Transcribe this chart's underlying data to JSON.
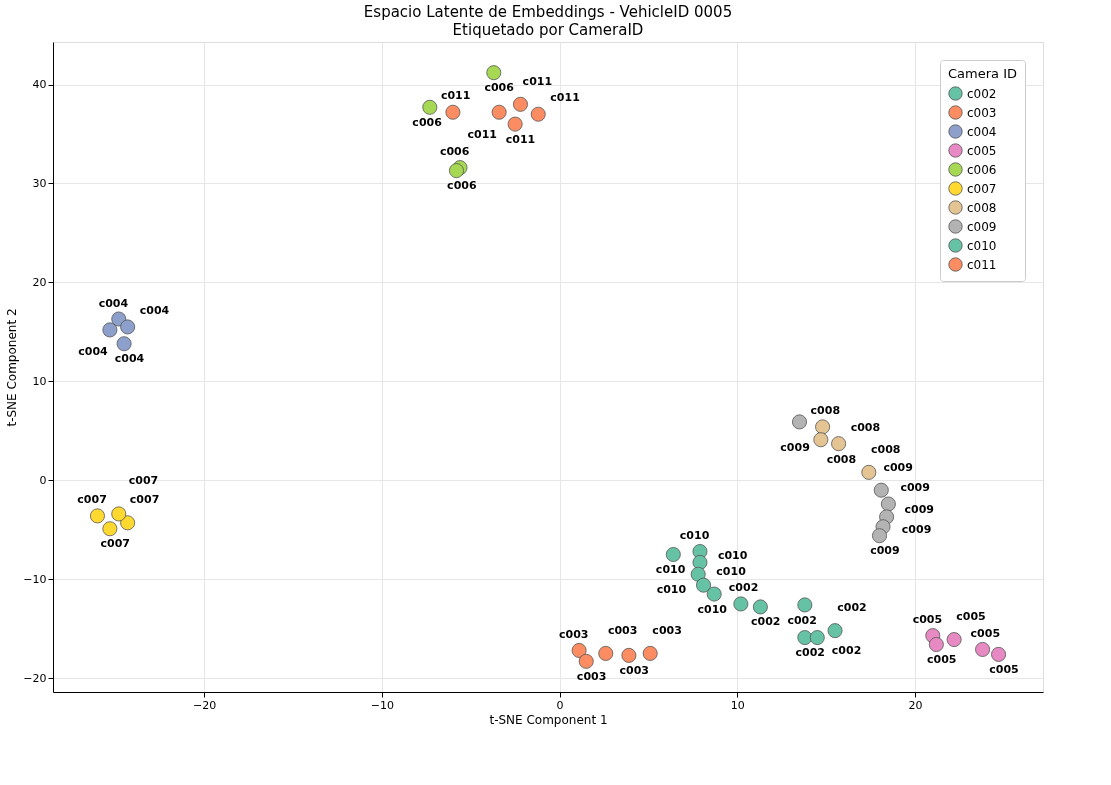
{
  "chart_data": {
    "type": "scatter",
    "title": "Espacio Latente de Embeddings - VehicleID 0005",
    "subtitle": "Etiquetado por CameraID",
    "xlabel": "t-SNE Component 1",
    "ylabel": "t-SNE Component 2",
    "legend_title": "Camera ID",
    "legend": "top right",
    "grid": true,
    "marker": "circle",
    "xlim": [
      -28.5,
      27.2
    ],
    "ylim": [
      -21.4,
      44.3
    ],
    "xticks": [
      -20,
      -10,
      0,
      10,
      20
    ],
    "yticks": [
      -20,
      -10,
      0,
      10,
      20,
      30,
      40
    ],
    "series": [
      {
        "name": "c002",
        "color": "#66c2a5",
        "x": [
          10.2,
          11.3,
          13.8,
          13.8,
          14.5,
          15.5
        ],
        "values": [
          -12.5,
          -12.8,
          -12.6,
          -15.9,
          -15.9,
          -15.2
        ]
      },
      {
        "name": "c003",
        "color": "#fc8d62",
        "x": [
          1.1,
          1.5,
          2.6,
          3.9,
          5.1
        ],
        "values": [
          -17.2,
          -18.3,
          -17.5,
          -17.7,
          -17.5
        ]
      },
      {
        "name": "c004",
        "color": "#8da0cb",
        "x": [
          -25.3,
          -24.8,
          -24.5,
          -24.3
        ],
        "values": [
          15.2,
          16.3,
          13.8,
          15.5
        ]
      },
      {
        "name": "c005",
        "color": "#e78ac3",
        "x": [
          21.0,
          21.2,
          22.2,
          23.8,
          24.7
        ],
        "values": [
          -15.7,
          -16.6,
          -16.1,
          -17.1,
          -17.6
        ]
      },
      {
        "name": "c006",
        "color": "#a6d854",
        "x": [
          -7.3,
          -3.7,
          -5.6,
          -5.8
        ],
        "values": [
          37.7,
          41.2,
          31.6,
          31.3
        ]
      },
      {
        "name": "c007",
        "color": "#ffd92f",
        "x": [
          -26.0,
          -25.3,
          -24.3,
          -24.8
        ],
        "values": [
          -3.6,
          -4.9,
          -4.3,
          -3.4
        ]
      },
      {
        "name": "c008",
        "color": "#e5c494",
        "x": [
          14.8,
          14.7,
          15.7,
          17.4
        ],
        "values": [
          5.4,
          4.1,
          3.7,
          0.8
        ]
      },
      {
        "name": "c009",
        "color": "#b3b3b3",
        "x": [
          13.5,
          18.1,
          18.5,
          18.4,
          18.2,
          18.0
        ],
        "values": [
          5.9,
          -1.0,
          -2.4,
          -3.7,
          -4.7,
          -5.6
        ]
      },
      {
        "name": "c010",
        "color": "#66c2a5",
        "x": [
          6.4,
          7.9,
          7.9,
          7.8,
          8.1,
          8.7
        ],
        "values": [
          -7.5,
          -7.2,
          -8.3,
          -9.5,
          -10.6,
          -11.5
        ]
      },
      {
        "name": "c011",
        "color": "#fc8d62",
        "x": [
          -6.0,
          -3.4,
          -2.5,
          -2.2,
          -1.2
        ],
        "values": [
          37.2,
          37.2,
          36.0,
          38.0,
          37.0
        ]
      }
    ],
    "annotations": [
      {
        "text": "c002",
        "x": 10.2,
        "y": -12.5
      },
      {
        "text": "c002",
        "x": 11.3,
        "y": -12.8
      },
      {
        "text": "c002",
        "x": 13.8,
        "y": -12.6
      },
      {
        "text": "c002",
        "x": 13.8,
        "y": -15.9
      },
      {
        "text": "c002",
        "x": 14.5,
        "y": -15.9
      },
      {
        "text": "c002",
        "x": 15.5,
        "y": -15.2
      },
      {
        "text": "c003",
        "x": 1.1,
        "y": -17.2
      },
      {
        "text": "c003",
        "x": 1.5,
        "y": -18.3
      },
      {
        "text": "c003",
        "x": 2.6,
        "y": -17.5
      },
      {
        "text": "c003",
        "x": 3.9,
        "y": -17.7
      },
      {
        "text": "c003",
        "x": 5.1,
        "y": -17.5
      },
      {
        "text": "c004",
        "x": -25.3,
        "y": 15.2
      },
      {
        "text": "c004",
        "x": -24.8,
        "y": 16.3
      },
      {
        "text": "c004",
        "x": -24.5,
        "y": 13.8
      },
      {
        "text": "c004",
        "x": -24.3,
        "y": 15.5
      },
      {
        "text": "c005",
        "x": 21.0,
        "y": -15.7
      },
      {
        "text": "c005",
        "x": 21.2,
        "y": -16.6
      },
      {
        "text": "c005",
        "x": 22.2,
        "y": -16.1
      },
      {
        "text": "c005",
        "x": 23.8,
        "y": -17.1
      },
      {
        "text": "c005",
        "x": 24.7,
        "y": -17.6
      },
      {
        "text": "c006",
        "x": -7.3,
        "y": 37.7
      },
      {
        "text": "c006",
        "x": -3.7,
        "y": 41.2
      },
      {
        "text": "c006",
        "x": -5.6,
        "y": 31.6
      },
      {
        "text": "c006",
        "x": -5.8,
        "y": 31.3
      },
      {
        "text": "c007",
        "x": -26.0,
        "y": -3.6
      },
      {
        "text": "c007",
        "x": -25.3,
        "y": -4.9
      },
      {
        "text": "c007",
        "x": -24.3,
        "y": -4.3
      },
      {
        "text": "c007",
        "x": -24.8,
        "y": -3.4
      },
      {
        "text": "c008",
        "x": 14.8,
        "y": 5.4
      },
      {
        "text": "c008",
        "x": 14.7,
        "y": 4.1
      },
      {
        "text": "c008",
        "x": 15.7,
        "y": 3.7
      },
      {
        "text": "c008",
        "x": 17.4,
        "y": 0.8
      },
      {
        "text": "c009",
        "x": 13.5,
        "y": 5.9
      },
      {
        "text": "c009",
        "x": 18.1,
        "y": -1.0
      },
      {
        "text": "c009",
        "x": 18.5,
        "y": -2.4
      },
      {
        "text": "c009",
        "x": 18.4,
        "y": -3.7
      },
      {
        "text": "c009",
        "x": 18.2,
        "y": -4.7
      },
      {
        "text": "c009",
        "x": 18.0,
        "y": -5.6
      },
      {
        "text": "c010",
        "x": 6.4,
        "y": -7.5
      },
      {
        "text": "c010",
        "x": 7.9,
        "y": -7.2
      },
      {
        "text": "c010",
        "x": 7.9,
        "y": -8.3
      },
      {
        "text": "c010",
        "x": 7.8,
        "y": -9.5
      },
      {
        "text": "c010",
        "x": 8.1,
        "y": -10.6
      },
      {
        "text": "c010",
        "x": 8.7,
        "y": -11.5
      },
      {
        "text": "c011",
        "x": -6.0,
        "y": 37.2
      },
      {
        "text": "c011",
        "x": -3.4,
        "y": 37.2
      },
      {
        "text": "c011",
        "x": -2.5,
        "y": 36.0
      },
      {
        "text": "c011",
        "x": -2.2,
        "y": 38.0
      },
      {
        "text": "c011",
        "x": -1.2,
        "y": 37.0
      }
    ]
  }
}
